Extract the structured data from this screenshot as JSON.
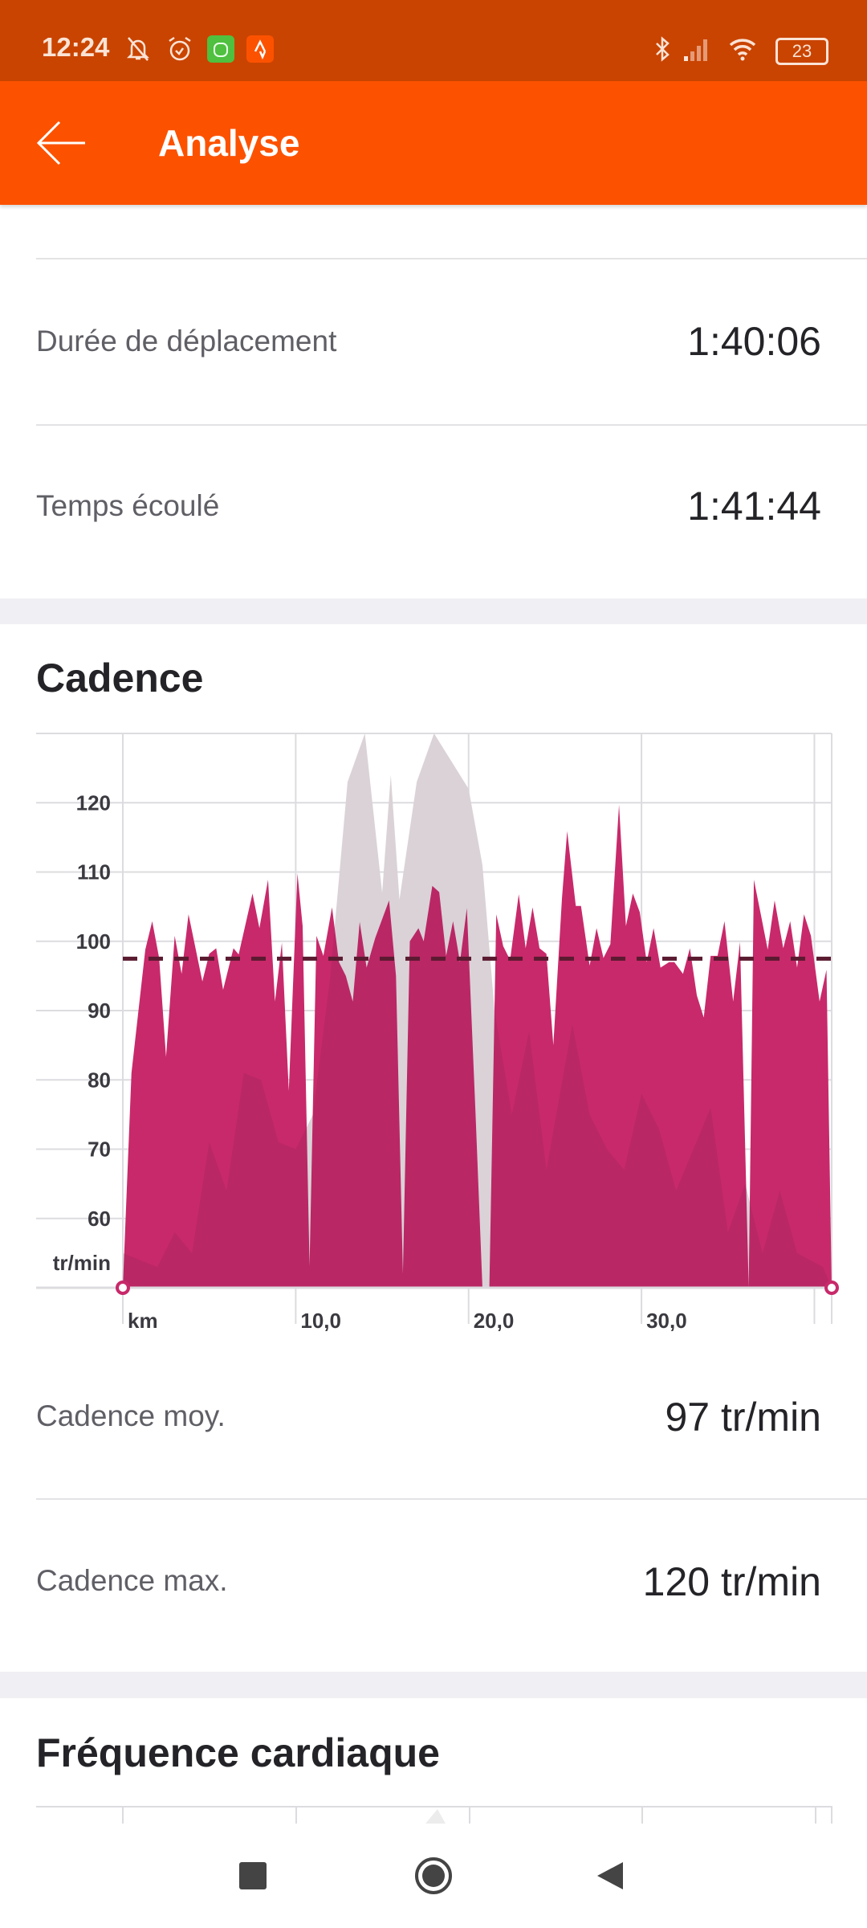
{
  "status_bar": {
    "time": "12:24",
    "battery": "23",
    "icons": [
      "bell-off-icon",
      "alarm-icon",
      "android-app-icon",
      "strava-icon",
      "bluetooth-icon",
      "signal-icon",
      "wifi-icon",
      "battery-icon"
    ]
  },
  "app_bar": {
    "title": "Analyse",
    "back_icon": "arrow-left-icon",
    "color": "#FC5200"
  },
  "stats": [
    {
      "label": "Durée de déplacement",
      "value": "1:40:06"
    },
    {
      "label": "Temps écoulé",
      "value": "1:41:44"
    }
  ],
  "cadence": {
    "title": "Cadence",
    "avg_label": "Cadence moy.",
    "avg_value": "97 tr/min",
    "max_label": "Cadence max.",
    "max_value": "120 tr/min"
  },
  "heart_rate": {
    "title": "Fréquence cardiaque"
  },
  "chart_data": {
    "type": "area",
    "ylabel": "tr/min",
    "xlabel": "km",
    "ylim": [
      50,
      130
    ],
    "xlim": [
      0,
      41
    ],
    "yticks": [
      "60",
      "70",
      "80",
      "90",
      "100",
      "110",
      "120"
    ],
    "ytick_values": [
      60,
      70,
      80,
      90,
      100,
      110,
      120
    ],
    "xticks": [
      "10,0",
      "20,0",
      "30,0"
    ],
    "xtick_values": [
      10,
      20,
      30
    ],
    "grid": true,
    "average_line": 97.5,
    "colors": {
      "series": "#C8296A",
      "average": "#5a1a30",
      "background": "#ececec"
    },
    "series": [
      {
        "x": [
          0,
          0.5,
          1.3,
          1.7,
          2.1,
          2.5,
          3.0,
          3.4,
          3.8,
          4.6,
          5.0,
          5.4,
          5.8,
          6.4,
          6.7,
          7.5,
          7.9,
          8.4,
          8.8,
          9.2,
          9.6,
          10.1,
          10.4,
          10.8,
          11.2,
          11.6,
          12.1,
          12.5,
          12.9,
          13.3,
          13.7,
          14.1,
          14.6,
          15.4,
          15.8,
          16.2,
          16.6,
          17.1,
          17.4,
          17.9,
          18.3,
          18.7,
          19.1,
          19.5,
          19.9,
          20.4,
          20.8,
          21.2,
          21.6,
          22.0,
          22.4,
          22.9,
          23.3,
          23.7,
          24.1,
          24.5,
          24.9,
          25.4,
          25.7,
          26.2,
          26.5,
          27.0,
          27.4,
          27.8,
          28.2,
          28.7,
          29.1,
          29.5,
          29.9,
          30.3,
          30.7,
          31.1,
          31.6,
          31.9,
          32.4,
          32.8,
          33.2,
          33.6,
          34.0,
          34.4,
          34.8,
          35.3,
          35.7,
          36.2,
          36.5,
          36.9,
          37.3,
          37.7,
          38.2,
          38.6,
          39.0,
          39.4,
          39.8,
          40.3,
          40.7,
          41.0
        ],
        "y": [
          50,
          81,
          98.8,
          102.9,
          97.6,
          83.3,
          100.8,
          95.3,
          103.9,
          94.2,
          98.2,
          99,
          93,
          99,
          98.1,
          106.9,
          101.9,
          108.9,
          91.3,
          99.8,
          78.4,
          109.8,
          102.2,
          53.1,
          100.8,
          97.9,
          104.9,
          97,
          95,
          91.3,
          102.8,
          96.2,
          100.5,
          105.9,
          95,
          52,
          100,
          101.9,
          100,
          108,
          107.1,
          97.9,
          102.9,
          97,
          104.8,
          75.2,
          50,
          50,
          103.9,
          99.3,
          97.3,
          106.8,
          99,
          104.9,
          99,
          98.2,
          85,
          106.2,
          115.9,
          105.1,
          105.1,
          96.5,
          101.9,
          97.6,
          99.6,
          119.7,
          102.2,
          106.9,
          104.2,
          97,
          101.9,
          96.2,
          97,
          97,
          95.3,
          99,
          92.2,
          89,
          97.9,
          97.9,
          102.9,
          91.3,
          99.9,
          50,
          108.9,
          103.9,
          98.8,
          105.9,
          99,
          102.9,
          96.2,
          103.9,
          100.8,
          91.3,
          95.9,
          50
        ]
      },
      {
        "x": [
          0,
          1,
          2,
          3,
          4,
          5,
          6,
          7,
          8,
          9,
          10,
          11,
          12,
          13,
          14,
          15,
          15.5,
          16,
          17,
          18,
          19,
          20,
          20.8,
          21.5,
          22.5,
          23.5,
          24.5,
          26,
          27,
          28,
          29,
          30,
          31,
          32,
          33,
          34,
          35,
          36,
          37,
          38,
          39,
          40.5,
          41
        ],
        "y": [
          55,
          54,
          53,
          58,
          55,
          71,
          64,
          81,
          80,
          71,
          70,
          75,
          95,
          123,
          130,
          107,
          124,
          106,
          123,
          130,
          126,
          122,
          111,
          90,
          75,
          87,
          67,
          88,
          75,
          70,
          67,
          78,
          73,
          64,
          70,
          76,
          58,
          65,
          55,
          64,
          55,
          53,
          50
        ]
      }
    ]
  }
}
